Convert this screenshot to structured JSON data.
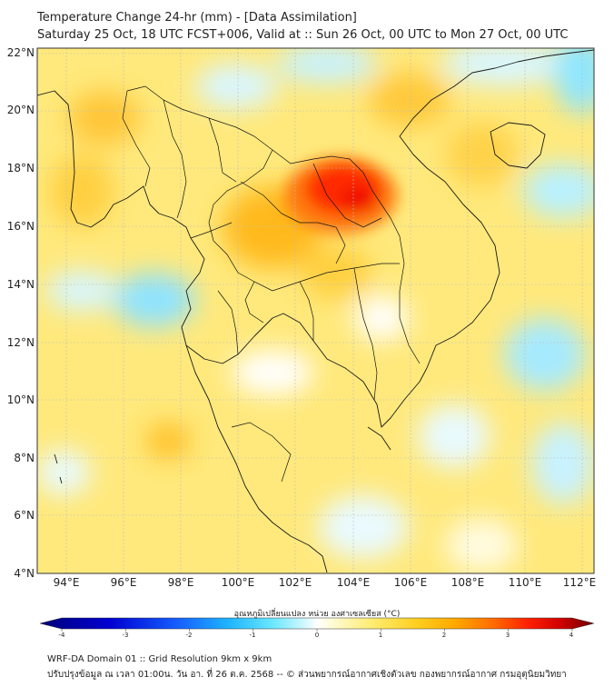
{
  "title": {
    "line1": "Temperature Change 24-hr (mm) - [Data Assimilation]",
    "line2": "Saturday 25 Oct, 18 UTC FCST+006, Valid at :: Sun 26 Oct, 00 UTC to Mon 27 Oct, 00 UTC"
  },
  "axes": {
    "lat_labels": [
      "22°N",
      "20°N",
      "18°N",
      "16°N",
      "14°N",
      "12°N",
      "10°N",
      "8°N",
      "6°N",
      "4°N"
    ],
    "lon_labels": [
      "94°E",
      "96°E",
      "98°E",
      "100°E",
      "102°E",
      "104°E",
      "106°E",
      "108°E",
      "110°E",
      "112°E"
    ]
  },
  "colorbar": {
    "title": "อุณหภูมิเปลี่ยนแปลง หน่วย องศาเซลเซียส (°C)",
    "ticks": [
      "-4",
      "-3",
      "-2",
      "-1",
      "0",
      "1",
      "2",
      "3",
      "4"
    ],
    "min": -4,
    "max": 4,
    "colors": [
      "#00007a",
      "#0000cc",
      "#0a3dff",
      "#1e90ff",
      "#1ec8ff",
      "#5de6ff",
      "#b8f4ff",
      "#ffffff",
      "#fff8b0",
      "#ffe34d",
      "#ffc400",
      "#ff9a00",
      "#ff5a00",
      "#ff1a00",
      "#c00000",
      "#6e0000"
    ]
  },
  "footer": {
    "line1": "WRF-DA Domain 01 :: Grid Resolution 9km x 9km",
    "line2": "ปรับปรุงข้อมูล ณ เวลา 01:00น. วัน อา. ที่ 26 ต.ค. 2568 -- © ส่วนพยากรณ์อากาศเชิงตัวเลข กองพยากรณ์อากาศ กรมอุตุนิยมวิทยา"
  },
  "palette": {
    "background_field": "#ffe87a",
    "land_outline": "#1a1a1a",
    "grid": "#bbbbbb"
  }
}
